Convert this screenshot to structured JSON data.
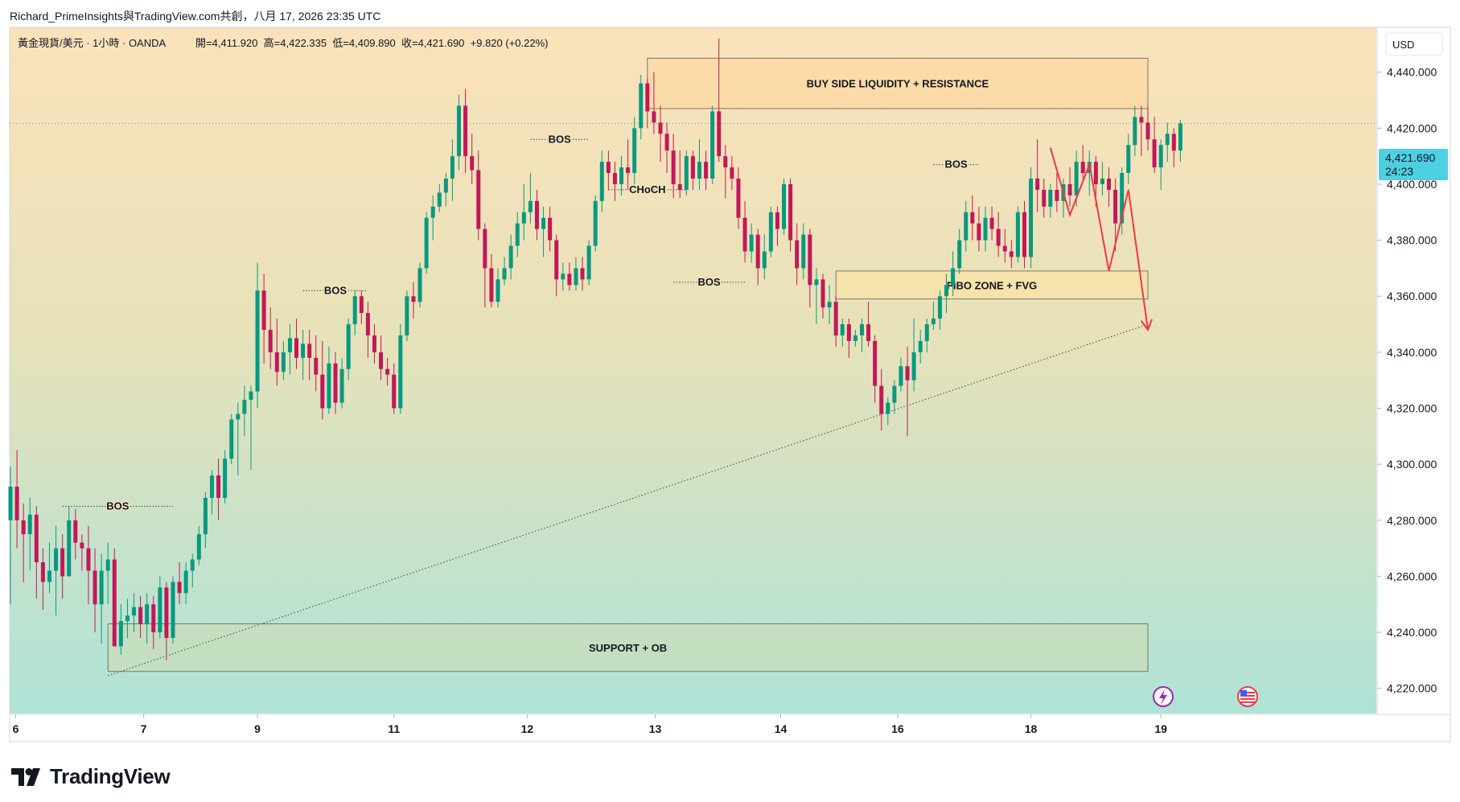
{
  "header": {
    "publisher_line": "Richard_PrimeInsights與TradingView.com共創，八月 17, 2026 23:35 UTC",
    "instrument": "黃金現貨/美元 · 1小時 · OANDA",
    "ohlc": "開=4,411.920  高=4,422.335  低=4,409.890  收=4,421.690  +9.820 (+0.22%)"
  },
  "currency_button": "USD",
  "last_price": {
    "value": "4,421.690",
    "countdown": "24:23"
  },
  "brand": "TradingView",
  "colors": {
    "up": "#089981",
    "down": "#c2185b",
    "price_tag": "#4dd0e1",
    "arrow": "#f23645"
  },
  "chart_data": {
    "type": "candlestick",
    "price_axis": {
      "ylim": [
        4211,
        4456
      ],
      "ticks": [
        4440,
        4420,
        4400,
        4380,
        4360,
        4340,
        4320,
        4300,
        4280,
        4260,
        4240,
        4220
      ],
      "tick_labels": [
        "4,440.000",
        "4,420.000",
        "4,400.000",
        "4,380.000",
        "4,360.000",
        "4,340.000",
        "4,320.000",
        "4,300.000",
        "4,280.000",
        "4,260.000",
        "4,240.000",
        "4,220.000"
      ]
    },
    "time_axis": {
      "labels": [
        "6",
        "7",
        "9",
        "11",
        "12",
        "13",
        "14",
        "16",
        "18",
        "19"
      ],
      "label_bar_index": [
        0.8,
        20.5,
        38,
        59,
        79.5,
        99.2,
        118.5,
        136.5,
        157,
        177
      ]
    },
    "candles": [
      [
        4280,
        4299,
        4250,
        4292
      ],
      [
        4292,
        4305,
        4270,
        4280
      ],
      [
        4280,
        4286,
        4258,
        4275
      ],
      [
        4275,
        4288,
        4262,
        4282
      ],
      [
        4282,
        4285,
        4252,
        4265
      ],
      [
        4265,
        4270,
        4248,
        4258
      ],
      [
        4258,
        4272,
        4254,
        4262
      ],
      [
        4262,
        4278,
        4246,
        4270
      ],
      [
        4270,
        4275,
        4252,
        4260
      ],
      [
        4260,
        4285,
        4262,
        4280
      ],
      [
        4280,
        4284,
        4266,
        4272
      ],
      [
        4272,
        4275,
        4262,
        4270
      ],
      [
        4270,
        4278,
        4250,
        4262
      ],
      [
        4262,
        4270,
        4240,
        4250
      ],
      [
        4250,
        4268,
        4236,
        4262
      ],
      [
        4262,
        4272,
        4250,
        4266
      ],
      [
        4266,
        4270,
        4235,
        4235
      ],
      [
        4235,
        4250,
        4232,
        4244
      ],
      [
        4244,
        4252,
        4238,
        4246
      ],
      [
        4246,
        4254,
        4240,
        4249
      ],
      [
        4249,
        4253,
        4238,
        4243
      ],
      [
        4243,
        4254,
        4236,
        4250
      ],
      [
        4250,
        4253,
        4234,
        4240
      ],
      [
        4240,
        4260,
        4238,
        4256
      ],
      [
        4256,
        4258,
        4230,
        4238
      ],
      [
        4238,
        4260,
        4236,
        4258
      ],
      [
        4258,
        4265,
        4250,
        4254
      ],
      [
        4254,
        4265,
        4250,
        4262
      ],
      [
        4262,
        4268,
        4256,
        4266
      ],
      [
        4266,
        4278,
        4264,
        4275
      ],
      [
        4275,
        4290,
        4270,
        4288
      ],
      [
        4288,
        4298,
        4282,
        4296
      ],
      [
        4296,
        4302,
        4280,
        4288
      ],
      [
        4288,
        4305,
        4286,
        4302
      ],
      [
        4302,
        4318,
        4300,
        4316
      ],
      [
        4316,
        4322,
        4296,
        4318
      ],
      [
        4318,
        4328,
        4310,
        4323
      ],
      [
        4323,
        4328,
        4298,
        4326
      ],
      [
        4326,
        4372,
        4320,
        4362
      ],
      [
        4362,
        4368,
        4336,
        4348
      ],
      [
        4348,
        4356,
        4334,
        4340
      ],
      [
        4340,
        4352,
        4328,
        4333
      ],
      [
        4333,
        4344,
        4330,
        4340
      ],
      [
        4340,
        4350,
        4332,
        4345
      ],
      [
        4345,
        4352,
        4334,
        4338
      ],
      [
        4338,
        4348,
        4330,
        4343
      ],
      [
        4343,
        4348,
        4330,
        4338
      ],
      [
        4338,
        4346,
        4326,
        4332
      ],
      [
        4332,
        4344,
        4316,
        4320
      ],
      [
        4320,
        4342,
        4318,
        4336
      ],
      [
        4336,
        4340,
        4318,
        4322
      ],
      [
        4322,
        4338,
        4320,
        4334
      ],
      [
        4334,
        4352,
        4330,
        4350
      ],
      [
        4350,
        4362,
        4346,
        4360
      ],
      [
        4360,
        4362,
        4350,
        4354
      ],
      [
        4354,
        4358,
        4338,
        4346
      ],
      [
        4346,
        4350,
        4336,
        4340
      ],
      [
        4340,
        4346,
        4330,
        4334
      ],
      [
        4334,
        4338,
        4328,
        4332
      ],
      [
        4332,
        4336,
        4318,
        4320
      ],
      [
        4320,
        4350,
        4318,
        4346
      ],
      [
        4346,
        4362,
        4344,
        4360
      ],
      [
        4360,
        4365,
        4352,
        4358
      ],
      [
        4358,
        4372,
        4356,
        4370
      ],
      [
        4370,
        4390,
        4368,
        4388
      ],
      [
        4388,
        4396,
        4380,
        4392
      ],
      [
        4392,
        4400,
        4390,
        4397
      ],
      [
        4397,
        4404,
        4392,
        4402
      ],
      [
        4402,
        4416,
        4394,
        4410
      ],
      [
        4410,
        4432,
        4405,
        4428
      ],
      [
        4428,
        4434,
        4404,
        4410
      ],
      [
        4410,
        4418,
        4400,
        4405
      ],
      [
        4405,
        4412,
        4380,
        4384
      ],
      [
        4384,
        4386,
        4356,
        4370
      ],
      [
        4370,
        4375,
        4356,
        4358
      ],
      [
        4358,
        4370,
        4356,
        4366
      ],
      [
        4366,
        4374,
        4364,
        4370
      ],
      [
        4370,
        4382,
        4366,
        4378
      ],
      [
        4378,
        4390,
        4374,
        4386
      ],
      [
        4386,
        4400,
        4380,
        4390
      ],
      [
        4390,
        4404,
        4386,
        4394
      ],
      [
        4394,
        4398,
        4380,
        4384
      ],
      [
        4384,
        4392,
        4374,
        4388
      ],
      [
        4388,
        4392,
        4376,
        4380
      ],
      [
        4380,
        4382,
        4360,
        4366
      ],
      [
        4366,
        4372,
        4362,
        4368
      ],
      [
        4368,
        4372,
        4362,
        4364
      ],
      [
        4364,
        4374,
        4362,
        4370
      ],
      [
        4370,
        4374,
        4362,
        4366
      ],
      [
        4366,
        4380,
        4364,
        4378
      ],
      [
        4378,
        4396,
        4376,
        4394
      ],
      [
        4394,
        4412,
        4390,
        4408
      ],
      [
        4408,
        4412,
        4398,
        4404
      ],
      [
        4404,
        4408,
        4394,
        4400
      ],
      [
        4400,
        4410,
        4396,
        4406
      ],
      [
        4406,
        4416,
        4398,
        4404
      ],
      [
        4404,
        4424,
        4400,
        4420
      ],
      [
        4420,
        4439,
        4416,
        4436
      ],
      [
        4436,
        4438,
        4420,
        4426
      ],
      [
        4426,
        4440,
        4418,
        4422
      ],
      [
        4422,
        4428,
        4408,
        4418
      ],
      [
        4418,
        4422,
        4404,
        4412
      ],
      [
        4412,
        4418,
        4395,
        4400
      ],
      [
        4400,
        4412,
        4395,
        4398
      ],
      [
        4398,
        4412,
        4396,
        4410
      ],
      [
        4410,
        4412,
        4398,
        4402
      ],
      [
        4402,
        4416,
        4398,
        4408
      ],
      [
        4408,
        4412,
        4398,
        4402
      ],
      [
        4402,
        4428,
        4400,
        4426
      ],
      [
        4426,
        4452,
        4408,
        4410
      ],
      [
        4410,
        4414,
        4395,
        4406
      ],
      [
        4406,
        4410,
        4398,
        4402
      ],
      [
        4402,
        4406,
        4384,
        4388
      ],
      [
        4388,
        4394,
        4372,
        4376
      ],
      [
        4376,
        4386,
        4372,
        4382
      ],
      [
        4382,
        4384,
        4364,
        4370
      ],
      [
        4370,
        4382,
        4366,
        4376
      ],
      [
        4376,
        4392,
        4374,
        4390
      ],
      [
        4390,
        4392,
        4378,
        4384
      ],
      [
        4384,
        4402,
        4382,
        4400
      ],
      [
        4400,
        4402,
        4376,
        4380
      ],
      [
        4380,
        4386,
        4364,
        4370
      ],
      [
        4370,
        4386,
        4366,
        4382
      ],
      [
        4382,
        4384,
        4356,
        4364
      ],
      [
        4364,
        4370,
        4350,
        4366
      ],
      [
        4366,
        4368,
        4352,
        4356
      ],
      [
        4356,
        4364,
        4350,
        4358
      ],
      [
        4358,
        4360,
        4342,
        4346
      ],
      [
        4346,
        4352,
        4342,
        4350
      ],
      [
        4350,
        4352,
        4338,
        4344
      ],
      [
        4344,
        4348,
        4342,
        4346
      ],
      [
        4346,
        4352,
        4340,
        4350
      ],
      [
        4350,
        4358,
        4342,
        4344
      ],
      [
        4344,
        4346,
        4322,
        4328
      ],
      [
        4328,
        4334,
        4312,
        4318
      ],
      [
        4318,
        4324,
        4314,
        4322
      ],
      [
        4322,
        4330,
        4318,
        4328
      ],
      [
        4328,
        4338,
        4326,
        4335
      ],
      [
        4335,
        4342,
        4310,
        4330
      ],
      [
        4330,
        4352,
        4326,
        4340
      ],
      [
        4340,
        4348,
        4336,
        4344
      ],
      [
        4344,
        4352,
        4340,
        4350
      ],
      [
        4350,
        4358,
        4348,
        4352
      ],
      [
        4352,
        4362,
        4348,
        4360
      ],
      [
        4360,
        4368,
        4354,
        4364
      ],
      [
        4364,
        4376,
        4360,
        4370
      ],
      [
        4370,
        4384,
        4368,
        4380
      ],
      [
        4380,
        4394,
        4376,
        4390
      ],
      [
        4390,
        4396,
        4380,
        4386
      ],
      [
        4386,
        4392,
        4376,
        4380
      ],
      [
        4380,
        4392,
        4376,
        4388
      ],
      [
        4388,
        4392,
        4380,
        4384
      ],
      [
        4384,
        4390,
        4374,
        4378
      ],
      [
        4378,
        4384,
        4372,
        4376
      ],
      [
        4376,
        4380,
        4370,
        4374
      ],
      [
        4374,
        4392,
        4372,
        4390
      ],
      [
        4390,
        4394,
        4370,
        4374
      ],
      [
        4374,
        4406,
        4370,
        4402
      ],
      [
        4402,
        4416,
        4390,
        4398
      ],
      [
        4398,
        4402,
        4388,
        4392
      ],
      [
        4392,
        4400,
        4388,
        4398
      ],
      [
        4398,
        4404,
        4390,
        4394
      ],
      [
        4394,
        4402,
        4388,
        4400
      ],
      [
        4400,
        4406,
        4392,
        4396
      ],
      [
        4396,
        4412,
        4392,
        4408
      ],
      [
        4408,
        4414,
        4402,
        4404
      ],
      [
        4404,
        4412,
        4396,
        4408
      ],
      [
        4408,
        4410,
        4392,
        4400
      ],
      [
        4400,
        4408,
        4396,
        4402
      ],
      [
        4402,
        4406,
        4392,
        4398
      ],
      [
        4398,
        4402,
        4376,
        4386
      ],
      [
        4386,
        4406,
        4382,
        4404
      ],
      [
        4404,
        4418,
        4400,
        4414
      ],
      [
        4414,
        4428,
        4410,
        4424
      ],
      [
        4424,
        4428,
        4410,
        4422
      ],
      [
        4422,
        4428,
        4412,
        4416
      ],
      [
        4416,
        4424,
        4404,
        4406
      ],
      [
        4406,
        4416,
        4398,
        4414
      ],
      [
        4414,
        4422,
        4408,
        4418
      ],
      [
        4418,
        4420,
        4406,
        4412
      ],
      [
        4412,
        4423,
        4408,
        4421.69
      ]
    ],
    "zones": [
      {
        "label": "BUY SIDE LIQUIDITY + RESISTANCE",
        "x_from": 98,
        "x_to": 175,
        "y_from": 4427,
        "y_to": 4445
      },
      {
        "label": "FIBO ZONE + FVG",
        "x_from": 127,
        "x_to": 175,
        "y_from": 4359,
        "y_to": 4369
      },
      {
        "label": "SUPPORT + OB",
        "x_from": 15,
        "x_to": 175,
        "y_from": 4226,
        "y_to": 4243
      }
    ],
    "structure_labels": [
      {
        "label": "BOS",
        "x_from": 8,
        "x_to": 25,
        "y": 4285
      },
      {
        "label": "BOS",
        "x_from": 45,
        "x_to": 55,
        "y": 4362
      },
      {
        "label": "BOS",
        "x_from": 80,
        "x_to": 89,
        "y": 4416
      },
      {
        "label": "CHoCH",
        "x_from": 92,
        "x_to": 104,
        "y": 4398
      },
      {
        "label": "BOS",
        "x_from": 102,
        "x_to": 113,
        "y": 4365
      },
      {
        "label": "BOS",
        "x_from": 142,
        "x_to": 149,
        "y": 4407
      }
    ],
    "trendline": {
      "from": [
        15,
        4224.5
      ],
      "to": [
        175,
        4350
      ]
    },
    "projection": [
      [
        160,
        4413
      ],
      [
        163,
        4389
      ],
      [
        166,
        4407
      ],
      [
        169,
        4369
      ],
      [
        172,
        4398
      ],
      [
        175,
        4348
      ]
    ]
  }
}
